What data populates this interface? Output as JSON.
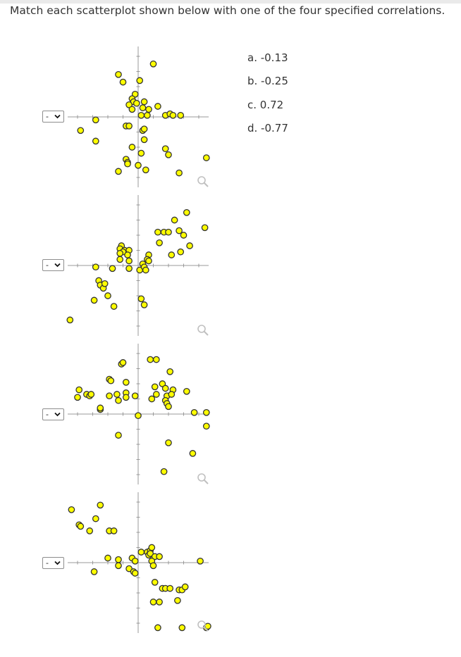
{
  "question": "Match each scatterplot shown below with one of the four specified correlations.",
  "answers": [
    {
      "label": "a. -0.13"
    },
    {
      "label": "b. -0.25"
    },
    {
      "label": "c. 0.72"
    },
    {
      "label": "d. -0.77"
    }
  ],
  "rows": [
    {
      "select_value": "-"
    },
    {
      "select_value": "-"
    },
    {
      "select_value": "-"
    },
    {
      "select_value": "-"
    }
  ],
  "colors": {
    "point_fill": "#ffff00",
    "point_stroke": "#333333",
    "axis": "#999999",
    "magnifier": "#c0c0c0"
  },
  "icons": {
    "zoom": "magnifier-icon",
    "dropdown": "chevron-down-icon"
  },
  "scatterplots": [
    {
      "points": [
        [
          0.5,
          -3.5
        ],
        [
          1,
          3.5
        ],
        [
          -1.3,
          2.8
        ],
        [
          -1.0,
          2.3
        ],
        [
          0.1,
          2.4
        ],
        [
          -0.2,
          1.5
        ],
        [
          -0.4,
          1.2
        ],
        [
          -0.3,
          1.0
        ],
        [
          -0.1,
          0.9
        ],
        [
          0.4,
          1.0
        ],
        [
          -0.6,
          0.8
        ],
        [
          0.3,
          0.6
        ],
        [
          -0.4,
          0.5
        ],
        [
          0.7,
          0.5
        ],
        [
          1.3,
          0.7
        ],
        [
          0.2,
          0.1
        ],
        [
          0.6,
          0.1
        ],
        [
          1.8,
          0.1
        ],
        [
          2.1,
          0.2
        ],
        [
          2.3,
          0.1
        ],
        [
          2.8,
          0.1
        ],
        [
          -3.8,
          -0.9
        ],
        [
          -2.8,
          -1.6
        ],
        [
          -2.8,
          -0.2
        ],
        [
          -0.8,
          -0.6
        ],
        [
          -0.6,
          -0.6
        ],
        [
          0.3,
          -0.9
        ],
        [
          0.4,
          -0.8
        ],
        [
          0.4,
          -1.5
        ],
        [
          -0.4,
          -2.0
        ],
        [
          0.2,
          -2.4
        ],
        [
          1.8,
          -2.1
        ],
        [
          2.0,
          -2.5
        ],
        [
          -0.8,
          -2.8
        ],
        [
          -0.7,
          -3.0
        ],
        [
          -0.7,
          -3.1
        ],
        [
          0.0,
          -3.2
        ],
        [
          -1.3,
          -3.6
        ],
        [
          2.7,
          -3.7
        ],
        [
          4.5,
          -2.7
        ]
      ]
    },
    {
      "points": [
        [
          3.2,
          3.5
        ],
        [
          2.4,
          3.0
        ],
        [
          4.4,
          2.5
        ],
        [
          1.3,
          2.2
        ],
        [
          1.7,
          2.2
        ],
        [
          2.0,
          2.2
        ],
        [
          2.7,
          2.3
        ],
        [
          3.0,
          2.0
        ],
        [
          1.4,
          1.5
        ],
        [
          3.4,
          1.3
        ],
        [
          -1.1,
          1.3
        ],
        [
          -1.2,
          1.1
        ],
        [
          -0.9,
          1.0
        ],
        [
          -0.6,
          1.0
        ],
        [
          -1.0,
          0.9
        ],
        [
          -1.2,
          0.8
        ],
        [
          -0.7,
          0.7
        ],
        [
          0.7,
          0.7
        ],
        [
          2.2,
          0.7
        ],
        [
          2.8,
          0.9
        ],
        [
          -1.2,
          0.4
        ],
        [
          -0.6,
          0.3
        ],
        [
          -0.6,
          -0.2
        ],
        [
          0.6,
          0.4
        ],
        [
          0.7,
          0.3
        ],
        [
          0.3,
          0.1
        ],
        [
          0.1,
          -0.3
        ],
        [
          0.4,
          -0.1
        ],
        [
          0.5,
          -0.3
        ],
        [
          -1.7,
          -0.2
        ],
        [
          -2.8,
          -0.1
        ],
        [
          -2.6,
          -1.0
        ],
        [
          -2.5,
          -1.3
        ],
        [
          -2.3,
          -1.5
        ],
        [
          -2.2,
          -1.2
        ],
        [
          -2.0,
          -2.0
        ],
        [
          -2.9,
          -2.3
        ],
        [
          -1.6,
          -2.7
        ],
        [
          0.2,
          -2.2
        ],
        [
          0.4,
          -2.6
        ],
        [
          -4.5,
          -3.6
        ]
      ]
    },
    {
      "points": [
        [
          0.8,
          3.6
        ],
        [
          1.2,
          3.6
        ],
        [
          -1.1,
          3.3
        ],
        [
          -1.0,
          3.4
        ],
        [
          2.1,
          2.8
        ],
        [
          -1.9,
          2.3
        ],
        [
          -1.8,
          2.2
        ],
        [
          -0.8,
          2.1
        ],
        [
          1.1,
          1.8
        ],
        [
          1.6,
          2.0
        ],
        [
          1.8,
          1.7
        ],
        [
          2.3,
          1.6
        ],
        [
          -3.9,
          1.6
        ],
        [
          -3.4,
          1.3
        ],
        [
          -0.8,
          1.4
        ],
        [
          -1.9,
          1.2
        ],
        [
          -1.4,
          1.3
        ],
        [
          -0.8,
          1.1
        ],
        [
          -0.2,
          1.2
        ],
        [
          -3.2,
          1.2
        ],
        [
          -3.1,
          1.3
        ],
        [
          -4.0,
          1.1
        ],
        [
          1.2,
          1.3
        ],
        [
          1.9,
          1.2
        ],
        [
          2.2,
          1.3
        ],
        [
          1.8,
          0.9
        ],
        [
          1.9,
          0.7
        ],
        [
          0.9,
          1.0
        ],
        [
          -1.3,
          0.9
        ],
        [
          3.2,
          1.5
        ],
        [
          2.0,
          0.5
        ],
        [
          -2.5,
          0.3
        ],
        [
          -2.5,
          0.4
        ],
        [
          3.7,
          0.1
        ],
        [
          4.5,
          0.1
        ],
        [
          0.0,
          -0.1
        ],
        [
          4.5,
          -0.8
        ],
        [
          -1.3,
          -1.4
        ],
        [
          2.0,
          -1.9
        ],
        [
          3.6,
          -2.6
        ],
        [
          1.7,
          -3.8
        ]
      ]
    },
    {
      "points": [
        [
          -4.4,
          3.5
        ],
        [
          -2.5,
          3.8
        ],
        [
          -2.8,
          2.9
        ],
        [
          -3.9,
          2.5
        ],
        [
          -3.8,
          2.4
        ],
        [
          -3.2,
          2.1
        ],
        [
          -1.9,
          2.1
        ],
        [
          -1.6,
          2.1
        ],
        [
          -2.0,
          0.3
        ],
        [
          -1.3,
          0.2
        ],
        [
          -0.4,
          0.3
        ],
        [
          -0.2,
          0.1
        ],
        [
          0.2,
          0.7
        ],
        [
          0.6,
          0.7
        ],
        [
          0.7,
          0.5
        ],
        [
          0.8,
          0.8
        ],
        [
          0.9,
          1.0
        ],
        [
          0.8,
          0.6
        ],
        [
          1.1,
          0.4
        ],
        [
          1.4,
          0.4
        ],
        [
          0.9,
          0.1
        ],
        [
          1.0,
          -0.2
        ],
        [
          -1.3,
          -0.2
        ],
        [
          -2.9,
          -0.6
        ],
        [
          -0.6,
          -0.4
        ],
        [
          -0.3,
          -0.6
        ],
        [
          -0.2,
          -0.7
        ],
        [
          1.1,
          -1.3
        ],
        [
          1.6,
          -1.7
        ],
        [
          1.8,
          -1.7
        ],
        [
          2.1,
          -1.7
        ],
        [
          2.7,
          -1.8
        ],
        [
          2.9,
          -1.8
        ],
        [
          3.1,
          -1.6
        ],
        [
          1.0,
          -2.6
        ],
        [
          1.4,
          -2.6
        ],
        [
          2.6,
          -2.5
        ],
        [
          4.1,
          0.1
        ],
        [
          1.3,
          -4.3
        ],
        [
          2.9,
          -4.3
        ],
        [
          4.5,
          -4.3
        ],
        [
          4.6,
          -4.2
        ]
      ]
    }
  ]
}
